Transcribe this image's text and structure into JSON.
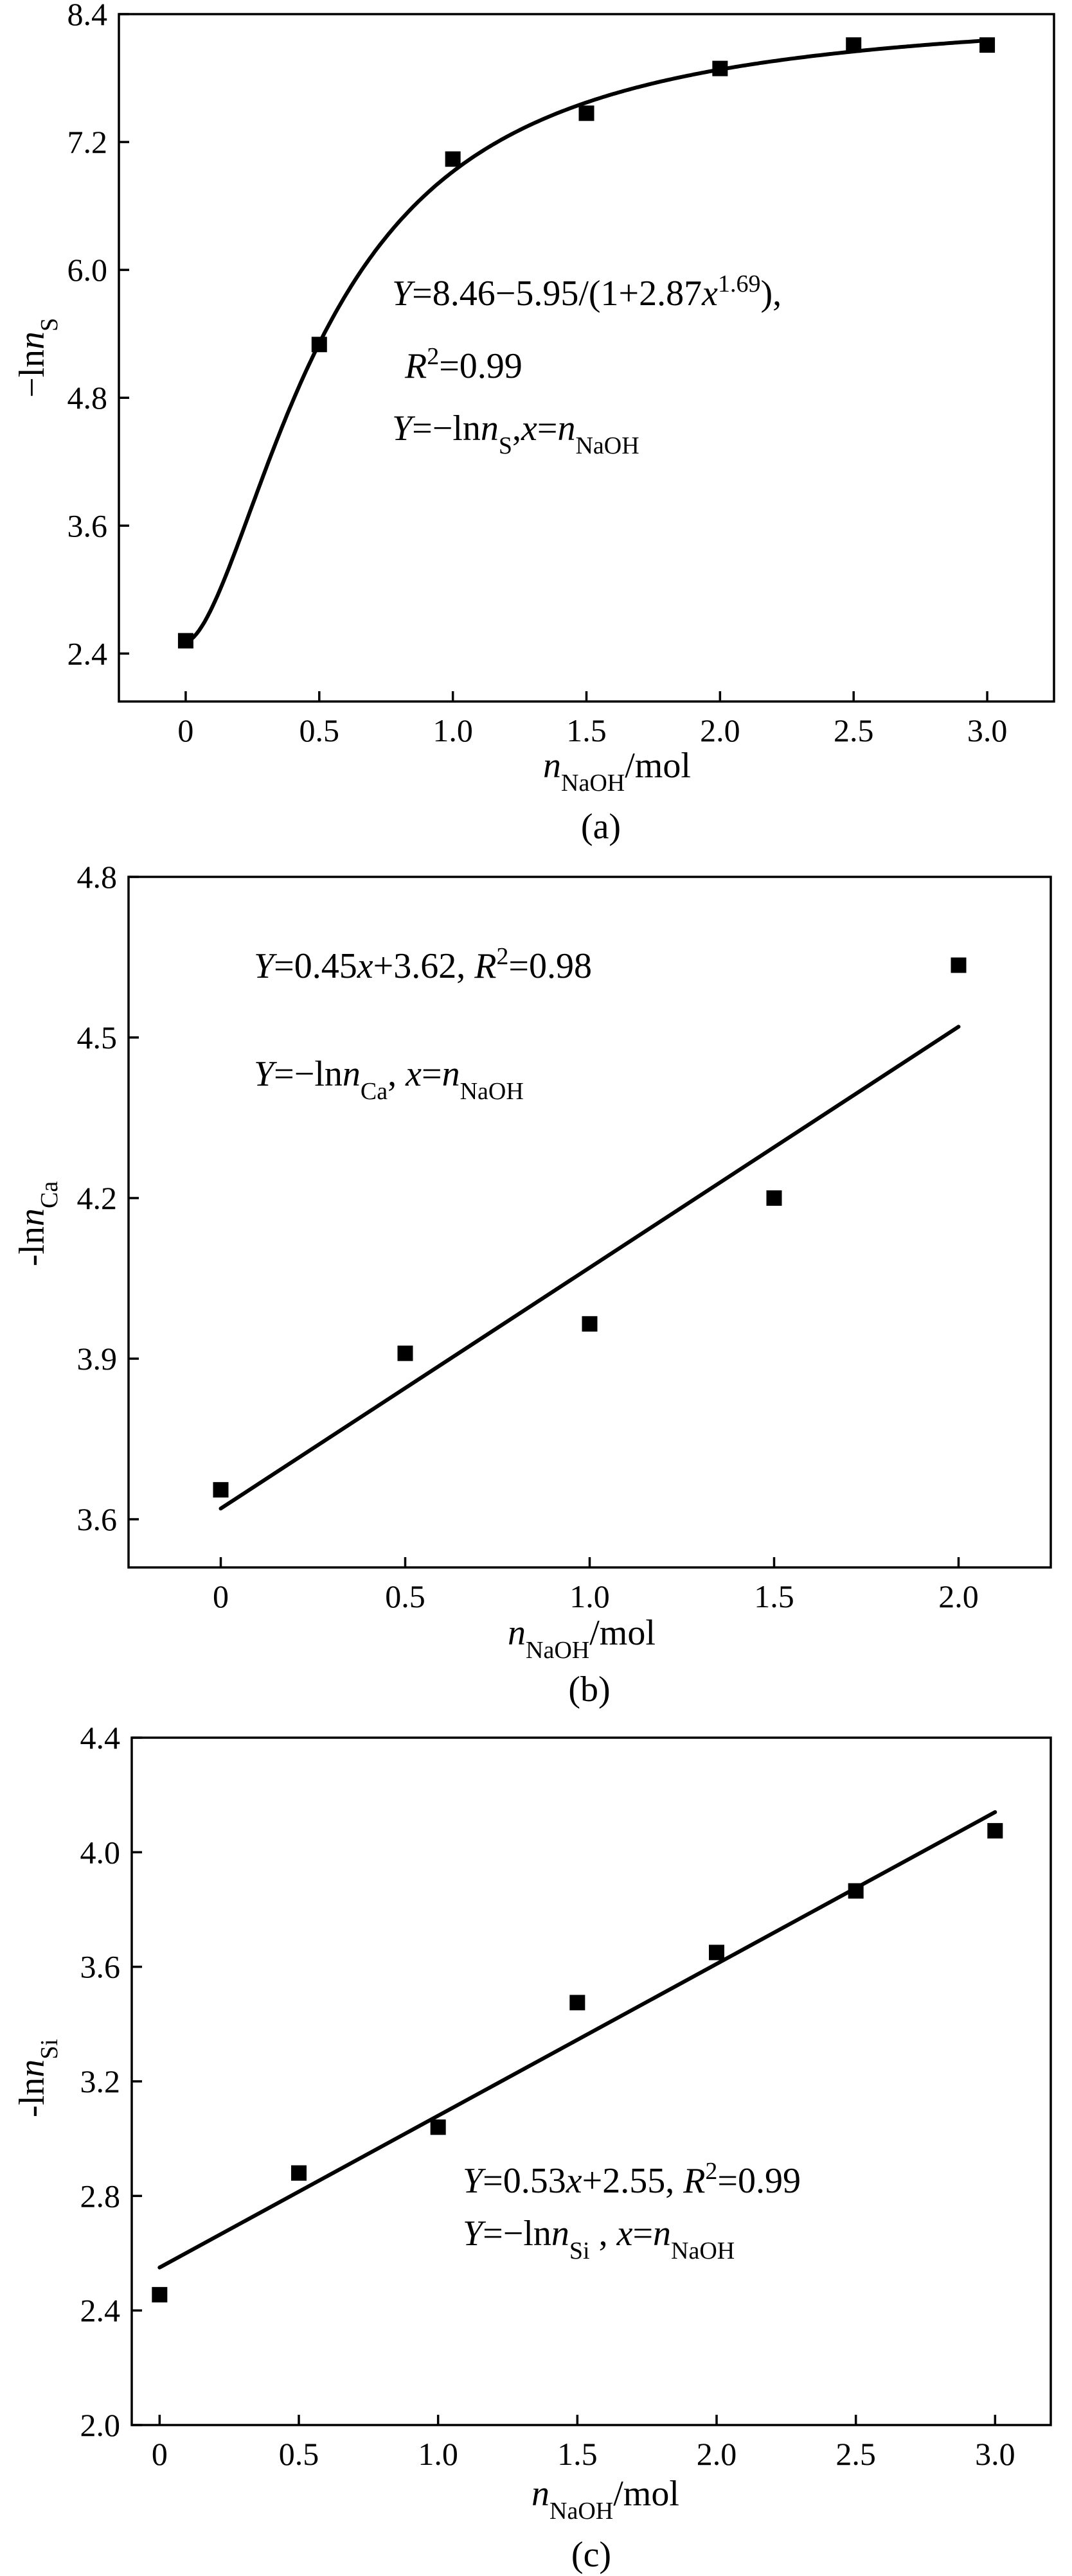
{
  "chart_data": [
    {
      "id": "a",
      "type": "scatter",
      "caption": "(a)",
      "xlabel": {
        "main": "n",
        "sub": "NaOH",
        "unit": "/mol"
      },
      "ylabel": {
        "prefix": "−ln",
        "var": "n",
        "sub": "S"
      },
      "xlim": [
        -0.25,
        3.25
      ],
      "ylim": [
        1.95,
        8.4
      ],
      "xticks": [
        0,
        0.5,
        1.0,
        1.5,
        2.0,
        2.5,
        3.0
      ],
      "xtick_labels": [
        "0",
        "0.5",
        "1.0",
        "1.5",
        "2.0",
        "2.5",
        "3.0"
      ],
      "yticks": [
        2.4,
        3.6,
        4.8,
        6.0,
        7.2,
        8.4
      ],
      "ytick_labels": [
        "2.4",
        "3.6",
        "4.8",
        "6.0",
        "7.2",
        "8.4"
      ],
      "series": [
        {
          "x": [
            0,
            0.5,
            1.0,
            1.5,
            2.0,
            2.5,
            3.0
          ],
          "y": [
            2.52,
            5.3,
            7.04,
            7.47,
            7.89,
            8.11,
            8.11
          ]
        }
      ],
      "fit": {
        "model": "logistic",
        "a": 8.46,
        "b": 5.95,
        "c": 2.87,
        "p": 1.69
      },
      "annotations": {
        "line1": {
          "Y": "Y",
          "t1": "=8.46−5.95/(1+2.87",
          "x": "x",
          "sup": "1.69",
          "t2": "),"
        },
        "line2": {
          "R": "R",
          "sup": "2",
          "t": "=0.99"
        },
        "line3": {
          "Y": "Y",
          "t1": "=−ln",
          "n": "n",
          "sub": "S",
          "t2": ",",
          "x": "x",
          "t3": "=",
          "n2": "n",
          "sub2": "NaOH"
        }
      }
    },
    {
      "id": "b",
      "type": "scatter",
      "caption": "(b)",
      "xlabel": {
        "main": "n",
        "sub": "NaOH",
        "unit": "/mol"
      },
      "ylabel": {
        "prefix": "-ln",
        "var": "n",
        "sub": "Ca"
      },
      "xlim": [
        -0.25,
        2.25
      ],
      "ylim": [
        3.51,
        4.8
      ],
      "xticks": [
        0,
        0.5,
        1.0,
        1.5,
        2.0
      ],
      "xtick_labels": [
        "0",
        "0.5",
        "1.0",
        "1.5",
        "2.0"
      ],
      "yticks": [
        3.6,
        3.9,
        4.2,
        4.5,
        4.8
      ],
      "ytick_labels": [
        "3.6",
        "3.9",
        "4.2",
        "4.5",
        "4.8"
      ],
      "series": [
        {
          "x": [
            0,
            0.5,
            1.0,
            1.5,
            2.0
          ],
          "y": [
            3.655,
            3.91,
            3.965,
            4.2,
            4.635
          ]
        }
      ],
      "fit": {
        "model": "linear",
        "slope": 0.45,
        "intercept": 3.62,
        "x_range": [
          0,
          2.0
        ]
      },
      "annotations": {
        "line1": {
          "Y": "Y",
          "t1": "=0.45",
          "x": "x",
          "t2": "+3.62, ",
          "R": "R",
          "sup": "2",
          "t3": "=0.98"
        },
        "line2": {
          "Y": "Y",
          "t1": "=−ln",
          "n": "n",
          "sub": "Ca",
          "t2": ", ",
          "x": "x",
          "t3": "=",
          "n2": "n",
          "sub2": "NaOH"
        }
      }
    },
    {
      "id": "c",
      "type": "scatter",
      "caption": "(c)",
      "xlabel": {
        "main": "n",
        "sub": "NaOH",
        "unit": "/mol"
      },
      "ylabel": {
        "prefix": "-ln",
        "var": "n",
        "sub": "Si"
      },
      "xlim": [
        -0.1,
        3.2
      ],
      "ylim": [
        2.0,
        4.4
      ],
      "xticks": [
        0,
        0.5,
        1.0,
        1.5,
        2.0,
        2.5,
        3.0
      ],
      "xtick_labels": [
        "0",
        "0.5",
        "1.0",
        "1.5",
        "2.0",
        "2.5",
        "3.0"
      ],
      "yticks": [
        2.0,
        2.4,
        2.8,
        3.2,
        3.6,
        4.0,
        4.4
      ],
      "ytick_labels": [
        "2.0",
        "2.4",
        "2.8",
        "3.2",
        "3.6",
        "4.0",
        "4.4"
      ],
      "series": [
        {
          "x": [
            0,
            0.5,
            1.0,
            1.5,
            2.0,
            2.5,
            3.0
          ],
          "y": [
            2.455,
            2.88,
            3.04,
            3.475,
            3.65,
            3.865,
            4.075
          ]
        }
      ],
      "fit": {
        "model": "linear",
        "slope": 0.53,
        "intercept": 2.55,
        "x_range": [
          0,
          3.0
        ]
      },
      "annotations": {
        "line1": {
          "Y": "Y",
          "t1": "=0.53",
          "x": "x",
          "t2": "+2.55, ",
          "R": "R",
          "sup": "2",
          "t3": "=0.99"
        },
        "line2": {
          "Y": "Y",
          "t1": "=−ln",
          "n": "n",
          "sub": "Si",
          "t2": " , ",
          "x": "x",
          "t3": "=",
          "n2": "n",
          "sub2": "NaOH"
        }
      }
    }
  ]
}
